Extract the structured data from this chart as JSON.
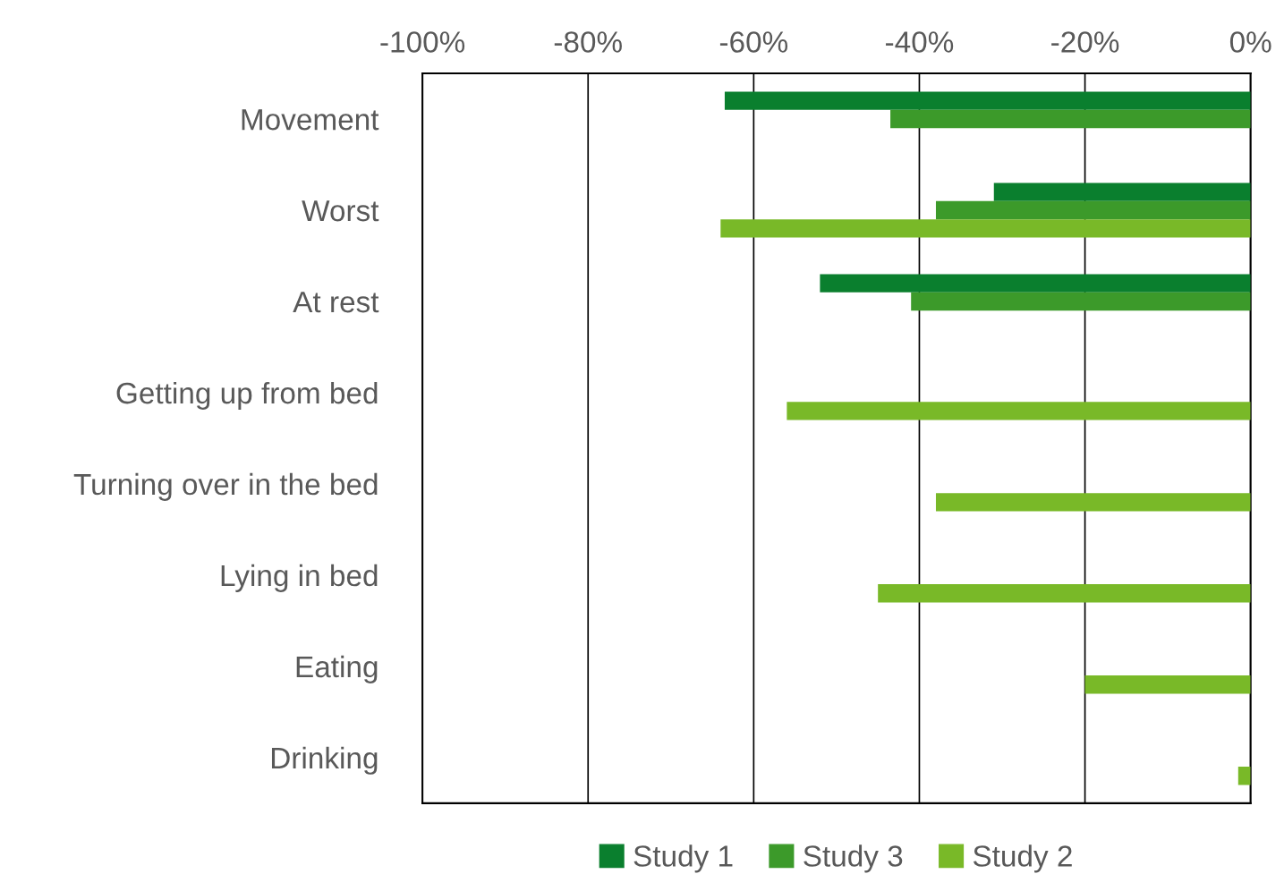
{
  "chart_data": {
    "type": "bar",
    "orientation": "horizontal",
    "categories": [
      "Movement",
      "Worst",
      "At rest",
      "Getting up from bed",
      "Turning over in the bed",
      "Lying in bed",
      "Eating",
      "Drinking"
    ],
    "series": [
      {
        "name": "Study 1",
        "color": "#0a7f2e",
        "values": [
          -63.5,
          -31,
          -52,
          null,
          null,
          null,
          null,
          null
        ]
      },
      {
        "name": "Study 3",
        "color": "#3c9a2a",
        "values": [
          -43.5,
          -38,
          -41,
          null,
          null,
          null,
          null,
          null
        ]
      },
      {
        "name": "Study 2",
        "color": "#79b928",
        "values": [
          null,
          -64,
          null,
          -56,
          -38,
          -45,
          -20,
          -1.5
        ]
      }
    ],
    "xlim": [
      -100,
      0
    ],
    "xticks": [
      {
        "value": -100,
        "label": "-100%"
      },
      {
        "value": -80,
        "label": "-80%"
      },
      {
        "value": -60,
        "label": "-60%"
      },
      {
        "value": -40,
        "label": "-40%"
      },
      {
        "value": -20,
        "label": "-20%"
      },
      {
        "value": 0,
        "label": "0%"
      }
    ],
    "grid": "x",
    "legend": "bottom"
  }
}
